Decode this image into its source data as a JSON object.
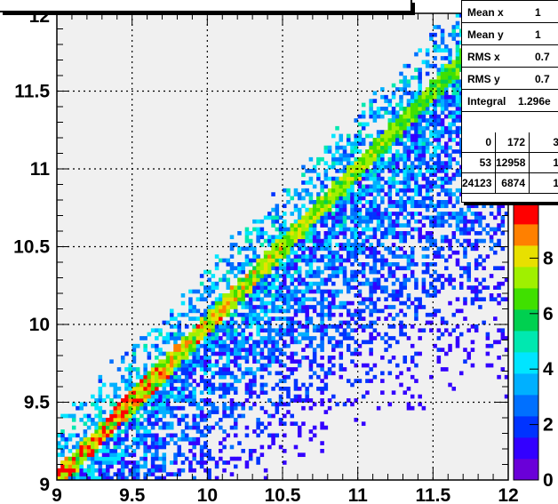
{
  "chart_data": {
    "type": "heatmap",
    "title": "",
    "xlabel": "",
    "ylabel": "",
    "xlim": [
      9,
      12
    ],
    "ylim": [
      9,
      12
    ],
    "x_ticks": [
      "9",
      "9.5",
      "10",
      "10.5",
      "11",
      "11.5",
      "12"
    ],
    "y_ticks": [
      "9",
      "9.5",
      "10",
      "10.5",
      "11",
      "11.5",
      "12"
    ],
    "z_range": [
      0,
      10
    ],
    "z_ticks": [
      "0",
      "2",
      "4",
      "6",
      "8"
    ],
    "grid": true,
    "palette": [
      "#6a00d8",
      "#3300ff",
      "#0033ff",
      "#0070ff",
      "#00b0ff",
      "#00e5ff",
      "#00e8b0",
      "#00d050",
      "#40e000",
      "#a0f000",
      "#e8e000",
      "#ff8000",
      "#ff0000"
    ],
    "band": {
      "description_points": [
        [
          9.0,
          9.0
        ],
        [
          12.0,
          12.0
        ]
      ]
    }
  },
  "stats": {
    "rows": [
      {
        "label": "Mean x",
        "value": "1"
      },
      {
        "label": "Mean y",
        "value": "1"
      },
      {
        "label": "RMS x",
        "value": "0.7"
      },
      {
        "label": "RMS y",
        "value": "0.7"
      },
      {
        "label": "Integral",
        "value": "1.296e"
      }
    ],
    "grid": [
      [
        "0",
        "172",
        "3"
      ],
      [
        "53",
        "12958",
        "1"
      ],
      [
        "24123",
        "6874",
        "1"
      ]
    ]
  },
  "colors": {
    "frame_bg": "#f0f0f0",
    "grid": "#000000"
  }
}
